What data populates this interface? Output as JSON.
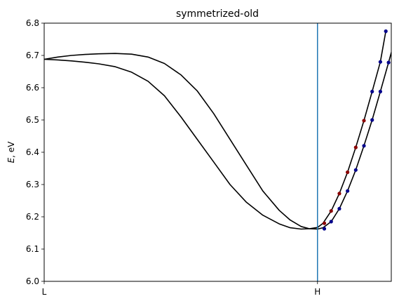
{
  "chart_data": {
    "type": "line",
    "title": "symmetrized-old",
    "ylabel": "E, eV",
    "xlabel": "",
    "ylim": [
      6.0,
      6.8
    ],
    "yticks": [
      "6.0",
      "6.1",
      "6.2",
      "6.3",
      "6.4",
      "6.5",
      "6.6",
      "6.7",
      "6.8"
    ],
    "xticks": [
      "L",
      "H"
    ],
    "x_range": [
      0,
      1.27
    ],
    "vline": {
      "x": 1.0,
      "label": "H",
      "color": "#1f77b4"
    },
    "line_color": "#000000",
    "series": [
      {
        "values": [
          [
            0.0,
            6.688
          ],
          [
            0.05,
            6.695
          ],
          [
            0.1,
            6.7
          ],
          [
            0.15,
            6.703
          ],
          [
            0.2,
            6.705
          ],
          [
            0.26,
            6.706
          ],
          [
            0.32,
            6.704
          ],
          [
            0.38,
            6.695
          ],
          [
            0.44,
            6.675
          ],
          [
            0.5,
            6.64
          ],
          [
            0.56,
            6.59
          ],
          [
            0.62,
            6.52
          ],
          [
            0.68,
            6.44
          ],
          [
            0.74,
            6.36
          ],
          [
            0.8,
            6.28
          ],
          [
            0.86,
            6.22
          ],
          [
            0.9,
            6.19
          ],
          [
            0.94,
            6.17
          ],
          [
            0.97,
            6.163
          ],
          [
            1.0,
            6.162
          ],
          [
            1.02,
            6.166
          ],
          [
            1.05,
            6.185
          ],
          [
            1.08,
            6.225
          ],
          [
            1.11,
            6.28
          ],
          [
            1.14,
            6.345
          ],
          [
            1.17,
            6.42
          ],
          [
            1.2,
            6.5
          ],
          [
            1.23,
            6.588
          ],
          [
            1.26,
            6.678
          ],
          [
            1.28,
            6.74
          ]
        ]
      },
      {
        "values": [
          [
            0.0,
            6.688
          ],
          [
            0.05,
            6.686
          ],
          [
            0.1,
            6.683
          ],
          [
            0.15,
            6.679
          ],
          [
            0.2,
            6.674
          ],
          [
            0.26,
            6.665
          ],
          [
            0.32,
            6.648
          ],
          [
            0.38,
            6.62
          ],
          [
            0.44,
            6.575
          ],
          [
            0.5,
            6.51
          ],
          [
            0.56,
            6.44
          ],
          [
            0.62,
            6.37
          ],
          [
            0.68,
            6.3
          ],
          [
            0.74,
            6.245
          ],
          [
            0.8,
            6.205
          ],
          [
            0.86,
            6.178
          ],
          [
            0.9,
            6.166
          ],
          [
            0.94,
            6.162
          ],
          [
            0.97,
            6.163
          ],
          [
            1.0,
            6.167
          ],
          [
            1.02,
            6.18
          ],
          [
            1.05,
            6.218
          ],
          [
            1.08,
            6.272
          ],
          [
            1.11,
            6.338
          ],
          [
            1.14,
            6.415
          ],
          [
            1.17,
            6.498
          ],
          [
            1.2,
            6.588
          ],
          [
            1.23,
            6.68
          ],
          [
            1.25,
            6.775
          ]
        ]
      }
    ],
    "markers": [
      {
        "x": 1.025,
        "y": 6.18,
        "color": "#8b0000"
      },
      {
        "x": 1.025,
        "y": 6.163,
        "color": "#00008b"
      },
      {
        "x": 1.05,
        "y": 6.218,
        "color": "#8b0000"
      },
      {
        "x": 1.05,
        "y": 6.185,
        "color": "#00008b"
      },
      {
        "x": 1.08,
        "y": 6.272,
        "color": "#8b0000"
      },
      {
        "x": 1.08,
        "y": 6.225,
        "color": "#00008b"
      },
      {
        "x": 1.11,
        "y": 6.338,
        "color": "#8b0000"
      },
      {
        "x": 1.11,
        "y": 6.28,
        "color": "#00008b"
      },
      {
        "x": 1.14,
        "y": 6.415,
        "color": "#8b0000"
      },
      {
        "x": 1.14,
        "y": 6.345,
        "color": "#00008b"
      },
      {
        "x": 1.17,
        "y": 6.498,
        "color": "#8b0000"
      },
      {
        "x": 1.17,
        "y": 6.42,
        "color": "#00008b"
      },
      {
        "x": 1.2,
        "y": 6.588,
        "color": "#00008b"
      },
      {
        "x": 1.2,
        "y": 6.5,
        "color": "#00008b"
      },
      {
        "x": 1.23,
        "y": 6.68,
        "color": "#00008b"
      },
      {
        "x": 1.23,
        "y": 6.588,
        "color": "#00008b"
      },
      {
        "x": 1.25,
        "y": 6.775,
        "color": "#00008b"
      },
      {
        "x": 1.26,
        "y": 6.678,
        "color": "#00008b"
      },
      {
        "x": 1.28,
        "y": 6.77,
        "color": "#00008b"
      }
    ]
  }
}
